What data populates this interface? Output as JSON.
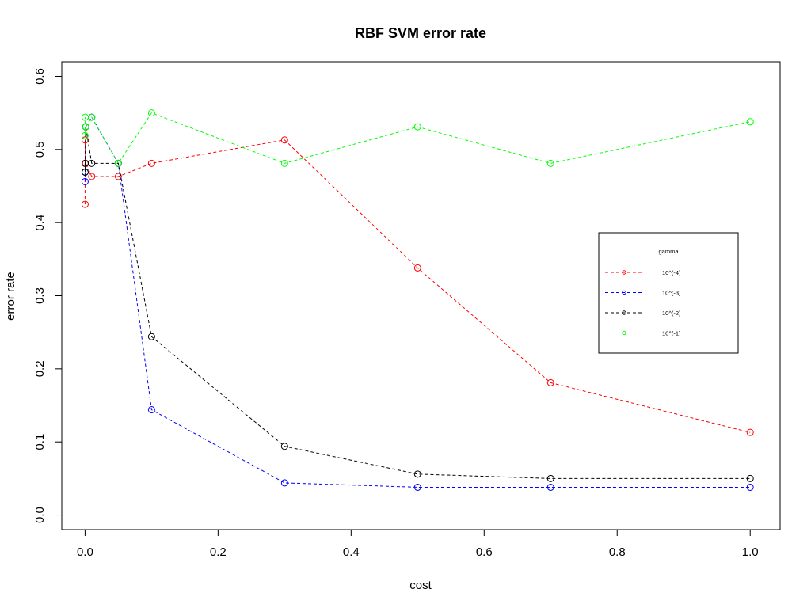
{
  "chart_data": {
    "type": "line",
    "title": "RBF SVM error rate",
    "xlabel": "cost",
    "ylabel": "error rate",
    "xlim": [
      -0.035,
      1.045
    ],
    "ylim": [
      -0.02,
      0.62
    ],
    "xticks": [
      0.0,
      0.2,
      0.4,
      0.6,
      0.8,
      1.0
    ],
    "xtick_labels": [
      "0.0",
      "0.2",
      "0.4",
      "0.6",
      "0.8",
      "1.0"
    ],
    "yticks": [
      0.0,
      0.1,
      0.2,
      0.3,
      0.4,
      0.5,
      0.6
    ],
    "ytick_labels": [
      "0.0",
      "0.1",
      "0.2",
      "0.3",
      "0.4",
      "0.5",
      "0.6"
    ],
    "grid": false,
    "legend": {
      "title": "gamma",
      "position": "right"
    },
    "x": [
      1e-05,
      0.0001,
      0.001,
      0.01,
      0.05,
      0.1,
      0.3,
      0.5,
      0.7,
      1.0
    ],
    "series": [
      {
        "name": "10^(-4)",
        "color": "#ff0000",
        "values": [
          0.425,
          0.513,
          0.481,
          0.463,
          0.463,
          0.481,
          0.513,
          0.338,
          0.181,
          0.113
        ]
      },
      {
        "name": "10^(-3)",
        "color": "#0000ff",
        "values": [
          0.456,
          0.469,
          0.531,
          0.544,
          0.481,
          0.144,
          0.044,
          0.038,
          0.038,
          0.038
        ]
      },
      {
        "name": "10^(-2)",
        "color": "#000000",
        "values": [
          0.481,
          0.469,
          0.531,
          0.481,
          0.481,
          0.244,
          0.094,
          0.056,
          0.05,
          0.05
        ]
      },
      {
        "name": "10^(-1)",
        "color": "#00ff00",
        "values": [
          0.519,
          0.544,
          0.531,
          0.544,
          0.481,
          0.55,
          0.481,
          0.531,
          0.481,
          0.538
        ]
      }
    ]
  }
}
